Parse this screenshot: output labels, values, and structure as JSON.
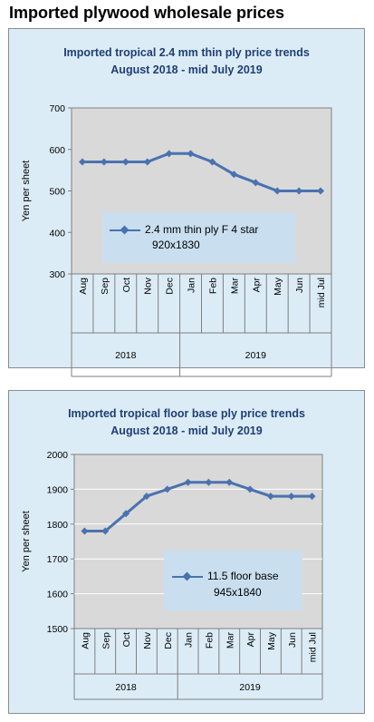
{
  "page_title": "Imported plywood wholesale prices",
  "chart_data": [
    {
      "type": "line",
      "title": "Imported tropical 2.4 mm thin ply price trends",
      "subtitle": "August 2018 -  mid July 2019",
      "ylabel": "Yen per sheet",
      "ylim": [
        300,
        700
      ],
      "yticks": [
        300,
        400,
        500,
        600,
        700
      ],
      "categories": [
        "Aug",
        "Sep",
        "Oct",
        "Nov",
        "Dec",
        "Jan",
        "Feb",
        "Mar",
        "Apr",
        "May",
        "Jun",
        "mid Jul"
      ],
      "year_groups": [
        {
          "label": "2018",
          "count": 5
        },
        {
          "label": "2019",
          "count": 7
        }
      ],
      "series": [
        {
          "name": "2.4 mm thin ply F 4 star",
          "size": "920x1830",
          "values": [
            570,
            570,
            570,
            570,
            590,
            590,
            570,
            540,
            520,
            500,
            500,
            500
          ]
        }
      ],
      "grid": false,
      "legend_position": "center",
      "colors": {
        "plot_bg": "#d9d9d9",
        "line": "#4a72b0",
        "legend_bg": "#c9dff0"
      }
    },
    {
      "type": "line",
      "title": "Imported tropical floor base ply price trends",
      "subtitle": "August 2018 - mid July 2019",
      "ylabel": "Yen per sheet",
      "ylim": [
        1500,
        2000
      ],
      "yticks": [
        1500,
        1600,
        1700,
        1800,
        1900,
        2000
      ],
      "categories": [
        "Aug",
        "Sep",
        "Oct",
        "Nov",
        "Dec",
        "Jan",
        "Feb",
        "Mar",
        "Apr",
        "May",
        "Jun",
        "mid Jul"
      ],
      "year_groups": [
        {
          "label": "2018",
          "count": 5
        },
        {
          "label": "2019",
          "count": 7
        }
      ],
      "series": [
        {
          "name": "11.5 floor base",
          "size": "945x1840",
          "values": [
            1780,
            1780,
            1830,
            1880,
            1900,
            1920,
            1920,
            1920,
            1900,
            1880,
            1880,
            1880
          ]
        }
      ],
      "grid": true,
      "legend_position": "bottom-right",
      "colors": {
        "plot_bg": "#d9d9d9",
        "line": "#4a72b0",
        "legend_bg": "#c9dff0",
        "grid": "#ffffff"
      }
    }
  ]
}
